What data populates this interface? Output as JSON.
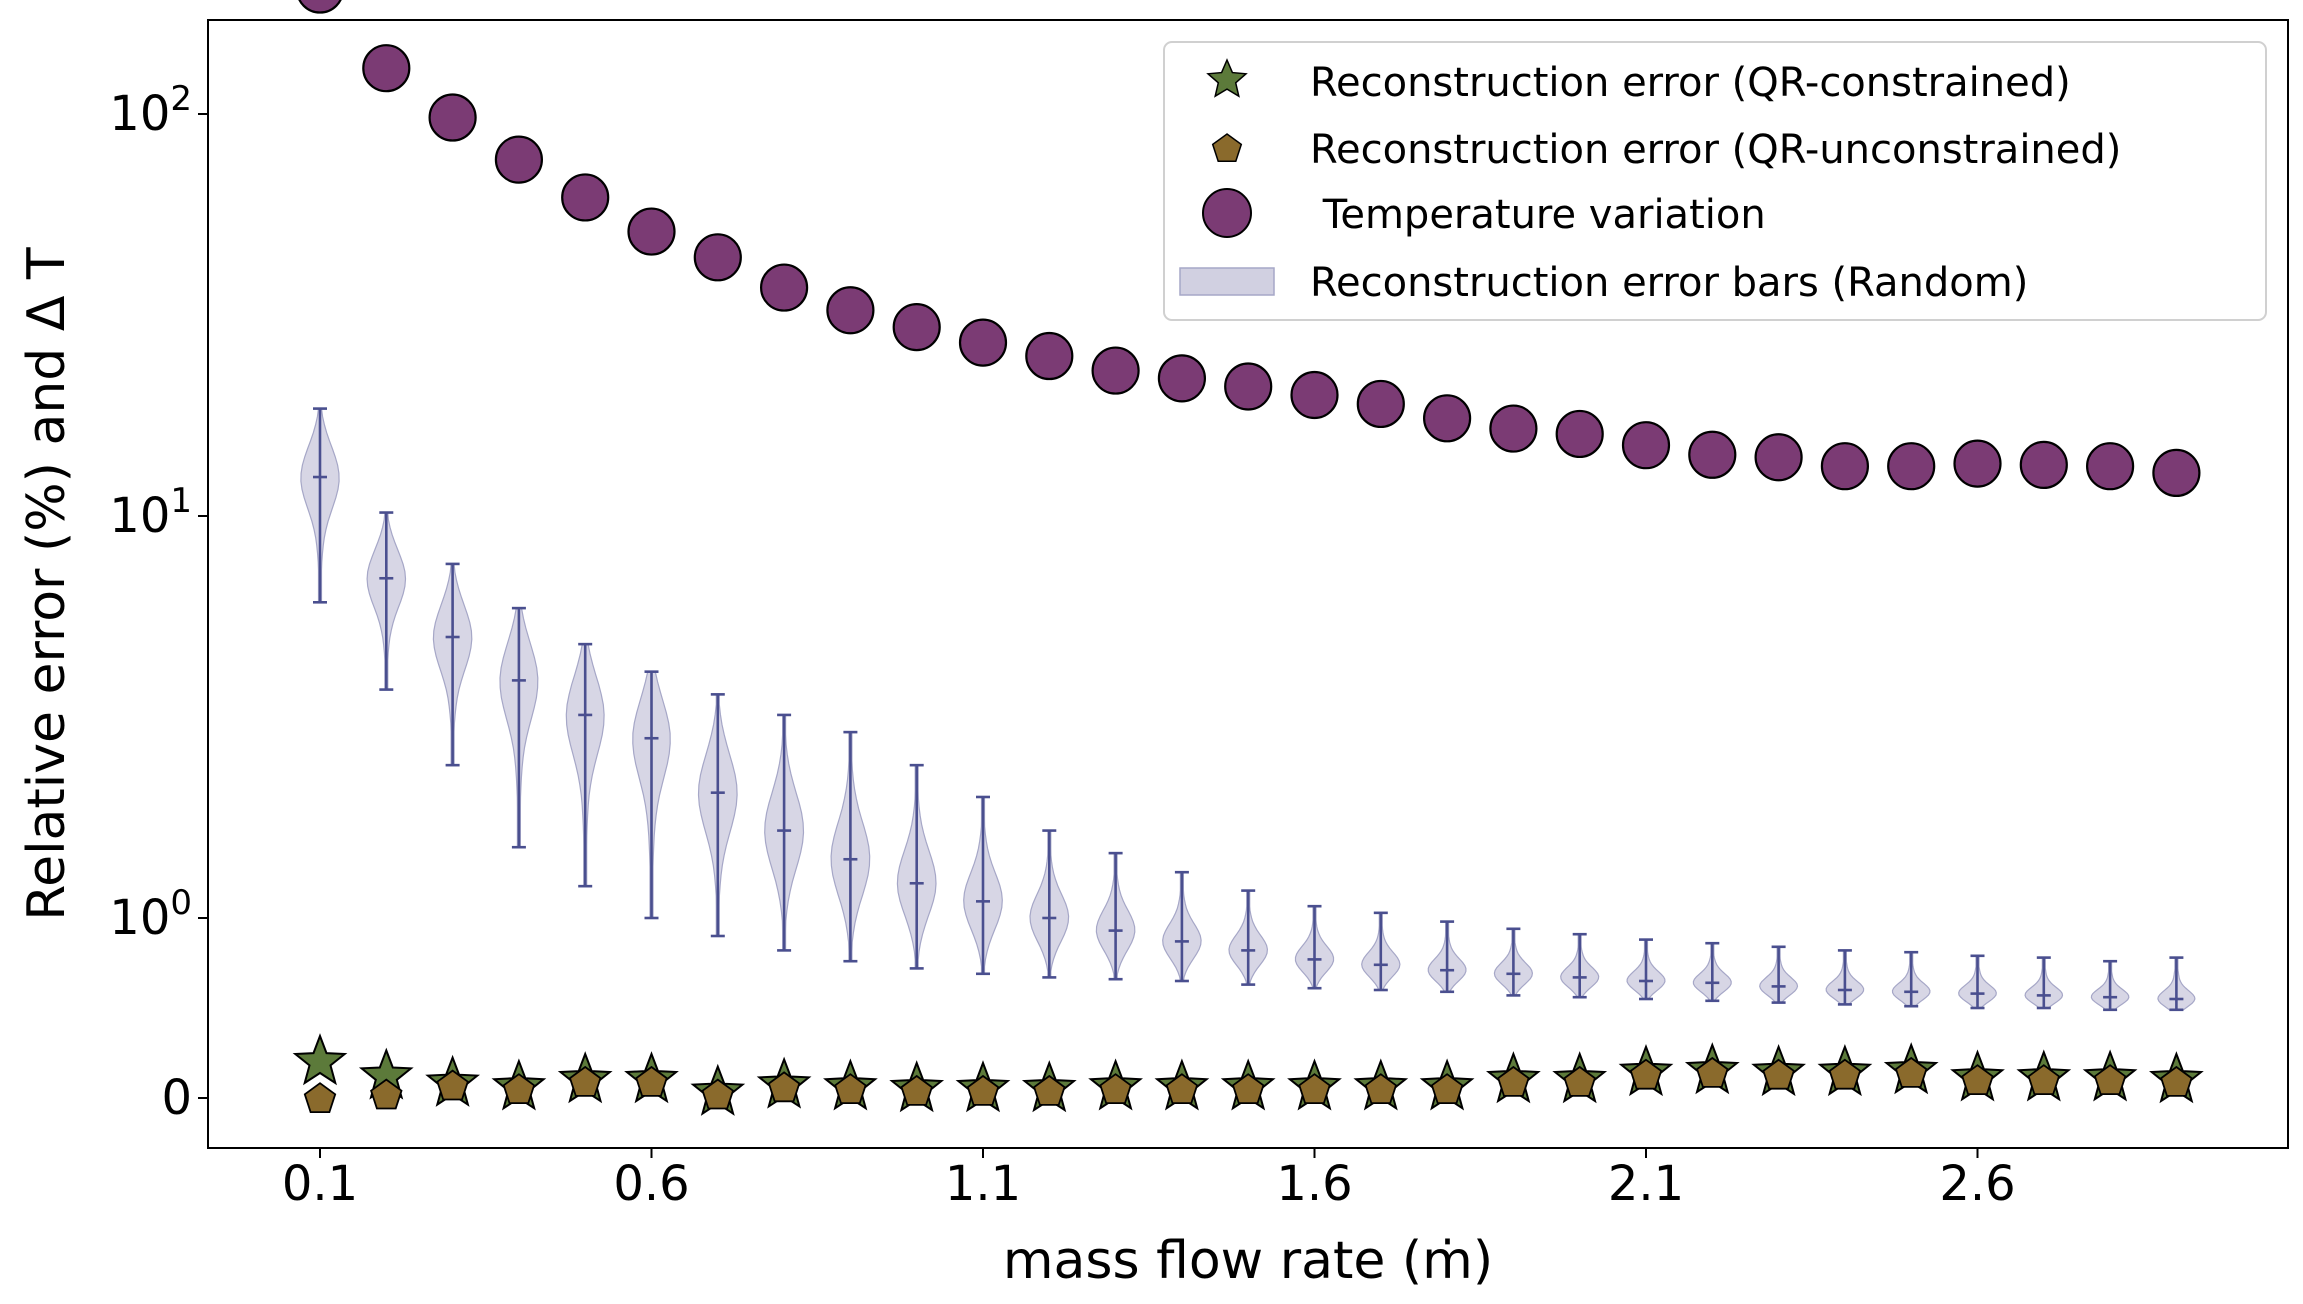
{
  "chart_data": {
    "type": "scatter",
    "xlabel": "mass flow rate (ṁ)",
    "ylabel": "Relative error (%) and Δ T",
    "yscale": "symlog",
    "xticks": [
      "0.1",
      "0.6",
      "1.1",
      "1.6",
      "2.1",
      "2.6"
    ],
    "xtick_values": [
      0.1,
      0.6,
      1.1,
      1.6,
      2.1,
      2.6
    ],
    "yticks": [
      {
        "value": 0,
        "base": "0",
        "exp": ""
      },
      {
        "value": 1,
        "base": "10",
        "exp": "0"
      },
      {
        "value": 10,
        "base": "10",
        "exp": "1"
      },
      {
        "value": 100,
        "base": "10",
        "exp": "2"
      }
    ],
    "xlim": [
      -0.066,
      3.07
    ],
    "x": [
      0.1,
      0.2,
      0.3,
      0.4,
      0.5,
      0.6,
      0.7,
      0.8,
      0.9,
      1.0,
      1.1,
      1.2,
      1.3,
      1.4,
      1.5,
      1.6,
      1.7,
      1.8,
      1.9,
      2.0,
      2.1,
      2.2,
      2.3,
      2.4,
      2.5,
      2.6,
      2.7,
      2.8,
      2.9
    ],
    "series": [
      {
        "name": "Temperature variation",
        "marker": "circle",
        "color": "#7b3b74",
        "values": [
          204,
          130,
          98,
          77,
          62,
          51,
          44,
          37,
          32.5,
          29.5,
          27,
          25,
          23,
          22,
          21,
          20,
          19,
          17.5,
          16.5,
          16,
          15,
          14.2,
          14,
          13.3,
          13.3,
          13.5,
          13.4,
          13.3,
          12.8
        ]
      },
      {
        "name": "Reconstruction error (QR-constrained)",
        "marker": "star",
        "color": "#5c7a3a",
        "values": [
          0.2,
          0.12,
          0.08,
          0.06,
          0.1,
          0.1,
          0.03,
          0.07,
          0.06,
          0.05,
          0.05,
          0.05,
          0.06,
          0.06,
          0.06,
          0.06,
          0.06,
          0.06,
          0.1,
          0.1,
          0.14,
          0.15,
          0.14,
          0.14,
          0.15,
          0.11,
          0.11,
          0.11,
          0.1
        ]
      },
      {
        "name": "Reconstruction error (QR-unconstrained)",
        "marker": "pentagon",
        "color": "#8a6a2c",
        "values": [
          0.01,
          0.03,
          0.08,
          0.06,
          0.1,
          0.1,
          0.03,
          0.07,
          0.06,
          0.05,
          0.05,
          0.05,
          0.06,
          0.06,
          0.06,
          0.06,
          0.06,
          0.06,
          0.1,
          0.1,
          0.14,
          0.15,
          0.14,
          0.14,
          0.15,
          0.11,
          0.11,
          0.11,
          0.1
        ]
      },
      {
        "name": "Reconstruction error bars (Random)",
        "marker": "violin",
        "color": "#4a4f8f",
        "fill": "#c9c8dc",
        "min": [
          6.1,
          3.7,
          2.4,
          1.5,
          1.2,
          1.0,
          0.9,
          0.82,
          0.76,
          0.72,
          0.69,
          0.67,
          0.66,
          0.65,
          0.63,
          0.61,
          0.6,
          0.59,
          0.57,
          0.56,
          0.55,
          0.54,
          0.53,
          0.52,
          0.51,
          0.5,
          0.5,
          0.49,
          0.49
        ],
        "max": [
          18.5,
          10.2,
          7.6,
          5.9,
          4.8,
          4.1,
          3.6,
          3.2,
          2.9,
          2.4,
          2.0,
          1.65,
          1.45,
          1.3,
          1.17,
          1.07,
          1.03,
          0.98,
          0.94,
          0.91,
          0.88,
          0.86,
          0.84,
          0.82,
          0.81,
          0.79,
          0.78,
          0.76,
          0.78
        ],
        "median": [
          12.5,
          7.0,
          5.0,
          3.9,
          3.2,
          2.8,
          2.05,
          1.65,
          1.4,
          1.22,
          1.1,
          1.0,
          0.93,
          0.87,
          0.82,
          0.77,
          0.74,
          0.71,
          0.69,
          0.67,
          0.65,
          0.64,
          0.62,
          0.6,
          0.59,
          0.58,
          0.57,
          0.56,
          0.55
        ]
      }
    ],
    "legend": {
      "position": "top-right",
      "entries": [
        {
          "label": "Reconstruction error (QR-constrained)",
          "marker": "star"
        },
        {
          "label": "Reconstruction error (QR-unconstrained)",
          "marker": "pentagon"
        },
        {
          "label": " Temperature variation",
          "marker": "circle"
        },
        {
          "label": "Reconstruction error bars (Random)",
          "marker": "patch"
        }
      ]
    }
  }
}
